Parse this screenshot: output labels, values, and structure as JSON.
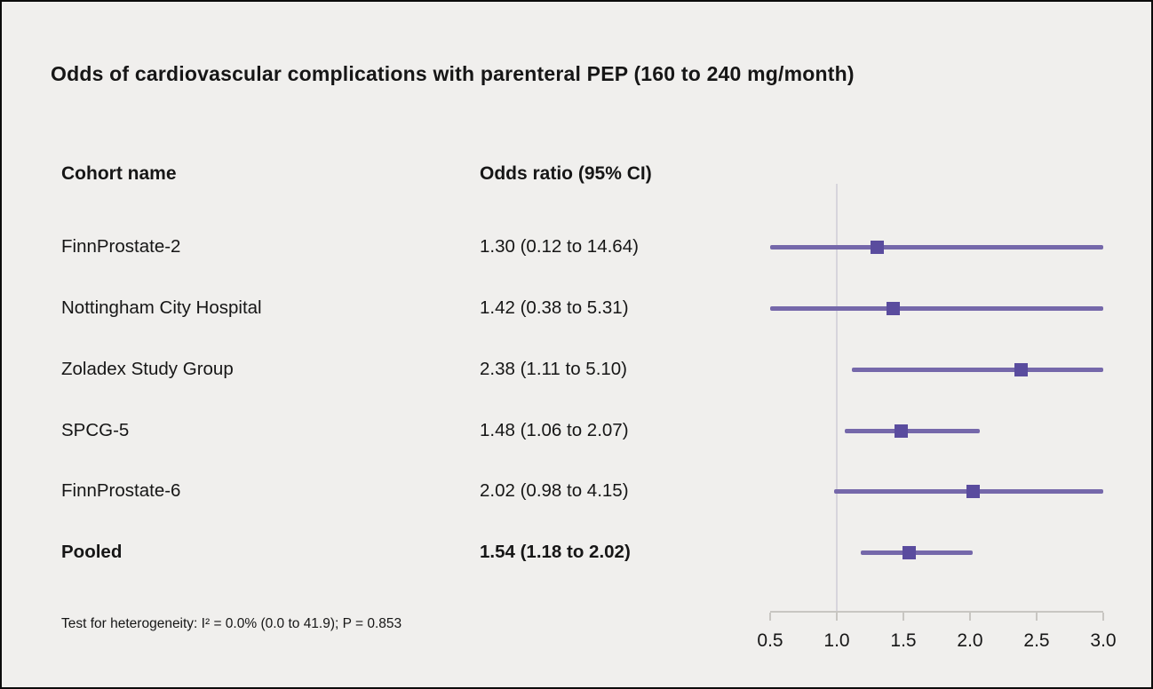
{
  "title": "Odds of cardiovascular complications with parenteral PEP (160 to 240 mg/month)",
  "columns": {
    "cohort": "Cohort name",
    "odds_ratio": "Odds ratio (95% CI)"
  },
  "footnote": "Test for heterogeneity: I² = 0.0% (0.0 to 41.9); P = 0.853",
  "chart_data": {
    "type": "forest",
    "title": "Odds of cardiovascular complications with parenteral PEP (160 to 240 mg/month)",
    "x_range": [
      0.5,
      3.0
    ],
    "reference_line": 1.0,
    "grid": false,
    "ticks": [
      {
        "value": 0.5,
        "label": "0.5"
      },
      {
        "value": 1.0,
        "label": "1.0"
      },
      {
        "value": 1.5,
        "label": "1.5"
      },
      {
        "value": 2.0,
        "label": "2.0"
      },
      {
        "value": 2.5,
        "label": "2.5"
      },
      {
        "value": 3.0,
        "label": "3.0"
      }
    ],
    "rows": [
      {
        "name": "FinnProstate-2",
        "estimate_label": "1.30 (0.12 to 14.64)",
        "or": 1.3,
        "ci_low": 0.12,
        "ci_high": 14.64,
        "bold": false
      },
      {
        "name": "Nottingham City Hospital",
        "estimate_label": "1.42 (0.38 to 5.31)",
        "or": 1.42,
        "ci_low": 0.38,
        "ci_high": 5.31,
        "bold": false
      },
      {
        "name": "Zoladex Study Group",
        "estimate_label": "2.38 (1.11 to 5.10)",
        "or": 2.38,
        "ci_low": 1.11,
        "ci_high": 5.1,
        "bold": false
      },
      {
        "name": "SPCG-5",
        "estimate_label": "1.48 (1.06 to 2.07)",
        "or": 1.48,
        "ci_low": 1.06,
        "ci_high": 2.07,
        "bold": false
      },
      {
        "name": "FinnProstate-6",
        "estimate_label": "2.02 (0.98 to 4.15)",
        "or": 2.02,
        "ci_low": 0.98,
        "ci_high": 4.15,
        "bold": false
      },
      {
        "name": "Pooled",
        "estimate_label": "1.54 (1.18 to 2.02)",
        "or": 1.54,
        "ci_low": 1.18,
        "ci_high": 2.02,
        "bold": true
      }
    ],
    "colors": {
      "ci_line": "#7568aa",
      "marker": "#5a4c9e",
      "axis": "#c8c6c2",
      "reference_line": "#d7d5dc",
      "background": "#f0efed",
      "text": "#161616"
    }
  }
}
